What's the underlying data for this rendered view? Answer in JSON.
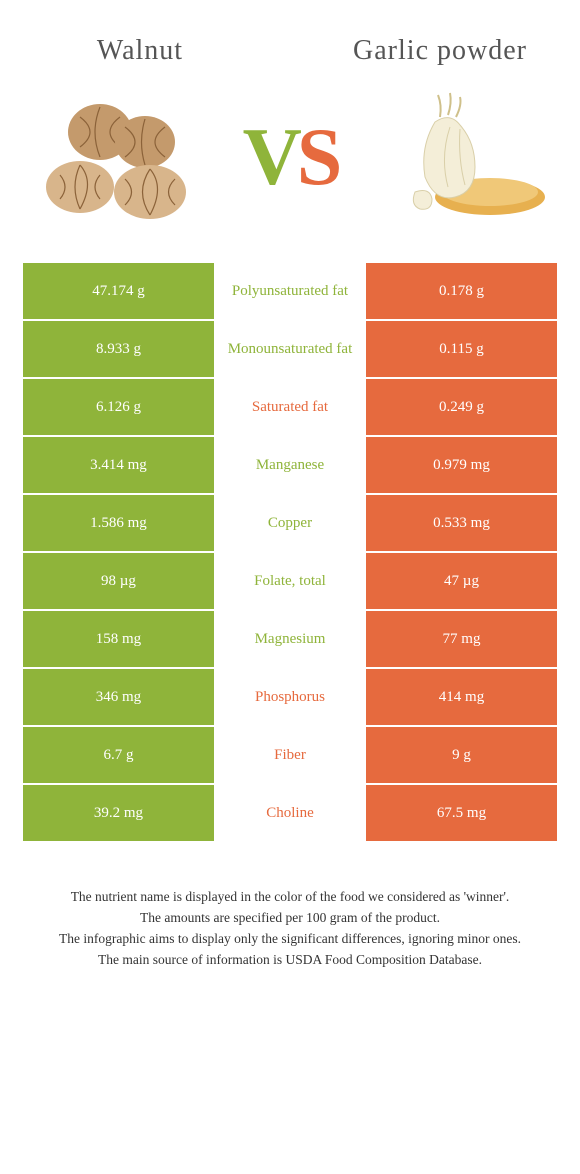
{
  "colors": {
    "left": "#8fb43a",
    "right": "#e66a3e",
    "left_text": "#8fb43a",
    "right_text": "#e66a3e"
  },
  "titles": {
    "left": "Walnut",
    "right": "Garlic powder"
  },
  "vs": {
    "v": "V",
    "s": "S"
  },
  "rows": [
    {
      "left": "47.174 g",
      "name": "Polyunsaturated fat",
      "right": "0.178 g",
      "winner": "left"
    },
    {
      "left": "8.933 g",
      "name": "Monounsaturated fat",
      "right": "0.115 g",
      "winner": "left"
    },
    {
      "left": "6.126 g",
      "name": "Saturated fat",
      "right": "0.249 g",
      "winner": "right"
    },
    {
      "left": "3.414 mg",
      "name": "Manganese",
      "right": "0.979 mg",
      "winner": "left"
    },
    {
      "left": "1.586 mg",
      "name": "Copper",
      "right": "0.533 mg",
      "winner": "left"
    },
    {
      "left": "98 µg",
      "name": "Folate, total",
      "right": "47 µg",
      "winner": "left"
    },
    {
      "left": "158 mg",
      "name": "Magnesium",
      "right": "77 mg",
      "winner": "left"
    },
    {
      "left": "346 mg",
      "name": "Phosphorus",
      "right": "414 mg",
      "winner": "right"
    },
    {
      "left": "6.7 g",
      "name": "Fiber",
      "right": "9 g",
      "winner": "right"
    },
    {
      "left": "39.2 mg",
      "name": "Choline",
      "right": "67.5 mg",
      "winner": "right"
    }
  ],
  "notes": [
    "The nutrient name is displayed in the color of the food we considered as 'winner'.",
    "The amounts are specified per 100 gram of the product.",
    "The infographic aims to display only the significant differences, ignoring minor ones.",
    "The main source of information is USDA Food Composition Database."
  ]
}
